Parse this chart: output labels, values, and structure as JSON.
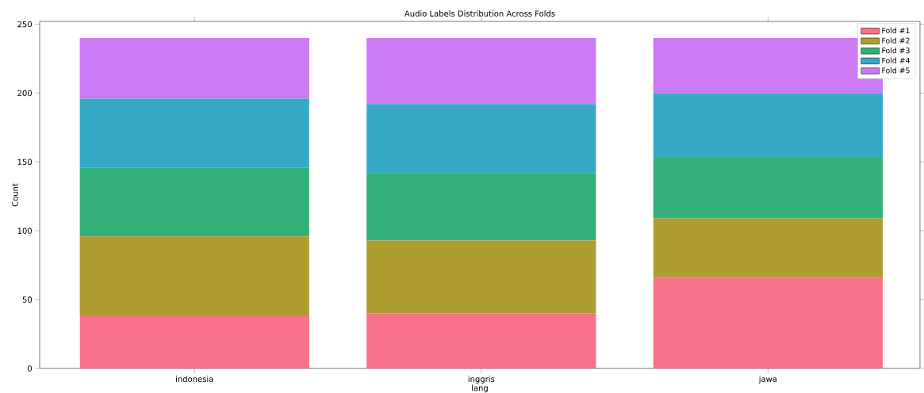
{
  "chart_data": {
    "type": "bar",
    "stacked": true,
    "title": "Audio Labels Distribution Across Folds",
    "xlabel": "lang",
    "ylabel": "Count",
    "categories": [
      "indonesia",
      "inggris",
      "jawa"
    ],
    "series": [
      {
        "name": "Fold #1",
        "color": "#f77189",
        "values": [
          38,
          40,
          66
        ]
      },
      {
        "name": "Fold #2",
        "color": "#ae9d31",
        "values": [
          58,
          53,
          43
        ]
      },
      {
        "name": "Fold #3",
        "color": "#33b07a",
        "values": [
          50,
          49,
          44
        ]
      },
      {
        "name": "Fold #4",
        "color": "#38a9c5",
        "values": [
          50,
          50,
          47
        ]
      },
      {
        "name": "Fold #5",
        "color": "#cc7af4",
        "values": [
          44,
          48,
          40
        ]
      }
    ],
    "ylim": [
      0,
      252
    ],
    "yticks": [
      0,
      50,
      100,
      150,
      200,
      250
    ],
    "legend": "top right",
    "grid": false
  }
}
